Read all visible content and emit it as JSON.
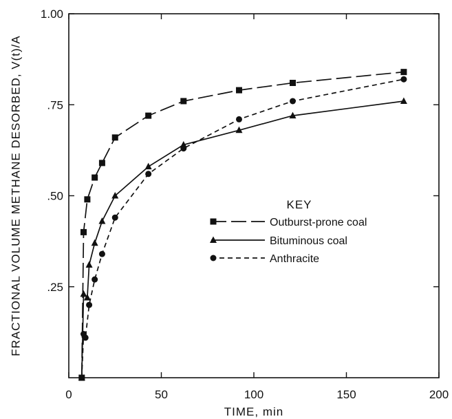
{
  "chart_data": {
    "type": "line",
    "title": "",
    "xlabel": "TIME, min",
    "ylabel": "FRACTIONAL VOLUME METHANE DESORBED, V(t)/A",
    "xlim": [
      0,
      200
    ],
    "ylim": [
      0,
      1.0
    ],
    "x_ticks": [
      {
        "value": 0,
        "label": "0"
      },
      {
        "value": 50,
        "label": "50"
      },
      {
        "value": 100,
        "label": "100"
      },
      {
        "value": 150,
        "label": "150"
      },
      {
        "value": 200,
        "label": "200"
      }
    ],
    "y_ticks": [
      {
        "value": 0.25,
        "label": ".25"
      },
      {
        "value": 0.5,
        "label": ".50"
      },
      {
        "value": 0.75,
        "label": ".75"
      },
      {
        "value": 1.0,
        "label": "1.00"
      }
    ],
    "grid": false,
    "legend": {
      "title": "KEY",
      "position": "center-right"
    },
    "series": [
      {
        "name": "Outburst-prone coal",
        "marker": "square",
        "line_style": "long-dash",
        "points": [
          {
            "x": 7,
            "y": 0.0
          },
          {
            "x": 8,
            "y": 0.4
          },
          {
            "x": 10,
            "y": 0.49
          },
          {
            "x": 14,
            "y": 0.55
          },
          {
            "x": 18,
            "y": 0.59
          },
          {
            "x": 25,
            "y": 0.66
          },
          {
            "x": 43,
            "y": 0.72
          },
          {
            "x": 62,
            "y": 0.76
          },
          {
            "x": 92,
            "y": 0.79
          },
          {
            "x": 121,
            "y": 0.81
          },
          {
            "x": 181,
            "y": 0.84
          }
        ]
      },
      {
        "name": "Bituminous coal",
        "marker": "triangle",
        "line_style": "solid",
        "points": [
          {
            "x": 7,
            "y": 0.0
          },
          {
            "x": 8,
            "y": 0.23
          },
          {
            "x": 10,
            "y": 0.22
          },
          {
            "x": 11,
            "y": 0.31
          },
          {
            "x": 14,
            "y": 0.37
          },
          {
            "x": 18,
            "y": 0.43
          },
          {
            "x": 25,
            "y": 0.5
          },
          {
            "x": 43,
            "y": 0.58
          },
          {
            "x": 62,
            "y": 0.64
          },
          {
            "x": 92,
            "y": 0.68
          },
          {
            "x": 121,
            "y": 0.72
          },
          {
            "x": 181,
            "y": 0.76
          }
        ]
      },
      {
        "name": "Anthracite",
        "marker": "circle",
        "line_style": "short-dash",
        "points": [
          {
            "x": 7,
            "y": 0.0
          },
          {
            "x": 8,
            "y": 0.12
          },
          {
            "x": 9,
            "y": 0.11
          },
          {
            "x": 11,
            "y": 0.2
          },
          {
            "x": 14,
            "y": 0.27
          },
          {
            "x": 18,
            "y": 0.34
          },
          {
            "x": 25,
            "y": 0.44
          },
          {
            "x": 43,
            "y": 0.56
          },
          {
            "x": 62,
            "y": 0.63
          },
          {
            "x": 92,
            "y": 0.71
          },
          {
            "x": 121,
            "y": 0.76
          },
          {
            "x": 181,
            "y": 0.82
          }
        ]
      }
    ]
  }
}
